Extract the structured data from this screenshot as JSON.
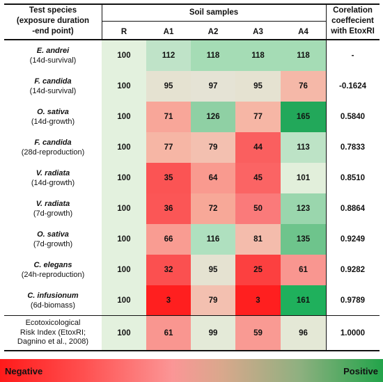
{
  "header": {
    "species_lines": [
      "Test species",
      "(exposure duration",
      "-end point)"
    ],
    "soil_samples": "Soil samples",
    "columns": [
      "R",
      "A1",
      "A2",
      "A3",
      "A4"
    ],
    "corr_lines": [
      "Corelation",
      "coeffecient",
      "with EtoxRI"
    ]
  },
  "rows": [
    {
      "name": "E. andrei",
      "cond": "(14d-survival)",
      "values": [
        "100",
        "112",
        "118",
        "118",
        "118"
      ],
      "colors": [
        "#e3f1de",
        "#bfe3c8",
        "#a5dcb5",
        "#a5dcb5",
        "#a5dcb5"
      ],
      "corr": "-"
    },
    {
      "name": "F. candida",
      "cond": "(14d-survival)",
      "values": [
        "100",
        "95",
        "97",
        "95",
        "76"
      ],
      "colors": [
        "#e3f1de",
        "#e5e2d1",
        "#e5e3d5",
        "#e5e2d1",
        "#f5b8a8"
      ],
      "corr": "-0.1624"
    },
    {
      "name": "O. sativa",
      "cond": "(14d-growth)",
      "values": [
        "100",
        "71",
        "126",
        "77",
        "165"
      ],
      "colors": [
        "#e3f1de",
        "#f8a699",
        "#8fd0a4",
        "#f6b6a5",
        "#22a85a"
      ],
      "corr": "0.5840"
    },
    {
      "name": "F. candida",
      "cond": "(28d-reproduction)",
      "values": [
        "100",
        "77",
        "79",
        "44",
        "113"
      ],
      "colors": [
        "#e3f1de",
        "#f6b6a5",
        "#f3c0b0",
        "#fa5f5f",
        "#bde3c6"
      ],
      "corr": "0.7833"
    },
    {
      "name": "V. radiata",
      "cond": "(14d-growth)",
      "values": [
        "100",
        "35",
        "64",
        "45",
        "101"
      ],
      "colors": [
        "#e3f1de",
        "#fb5454",
        "#f99a8f",
        "#fb6464",
        "#e2efdb"
      ],
      "corr": "0.8510"
    },
    {
      "name": "V. radiata",
      "cond": "(7d-growth)",
      "values": [
        "100",
        "36",
        "72",
        "50",
        "123"
      ],
      "colors": [
        "#e3f1de",
        "#fb5656",
        "#f7a898",
        "#fa7a7a",
        "#9ad6ad"
      ],
      "corr": "0.8864"
    },
    {
      "name": "O. sativa",
      "cond": "(7d-growth)",
      "values": [
        "100",
        "66",
        "116",
        "81",
        "135"
      ],
      "colors": [
        "#e3f1de",
        "#f99c92",
        "#afe0bf",
        "#f4bcac",
        "#6ec48c"
      ],
      "corr": "0.9249"
    },
    {
      "name": "C. elegans",
      "cond": "(24h-reproduction)",
      "values": [
        "100",
        "32",
        "95",
        "25",
        "61"
      ],
      "colors": [
        "#e3f1de",
        "#fb5050",
        "#e5e2d1",
        "#fc4040",
        "#f99690"
      ],
      "corr": "0.9282"
    },
    {
      "name": "C. infusionum",
      "cond": "(6d-biomass)",
      "values": [
        "100",
        "3",
        "79",
        "3",
        "161"
      ],
      "colors": [
        "#e3f1de",
        "#ff1f1f",
        "#f3c0b0",
        "#ff1f1f",
        "#1fb05c"
      ],
      "corr": "0.9789"
    }
  ],
  "index_row": {
    "lines": [
      "Ecotoxicological",
      "Risk Index (EtoxRI;",
      "Dagnino et al., 2008)"
    ],
    "values": [
      "100",
      "61",
      "99",
      "59",
      "96"
    ],
    "colors": [
      "#e3f1de",
      "#f99690",
      "#e4ead8",
      "#f99a93",
      "#e4e8d6"
    ],
    "corr": "1.0000"
  },
  "legend": {
    "negative": "Negative",
    "positive": "Positive"
  }
}
